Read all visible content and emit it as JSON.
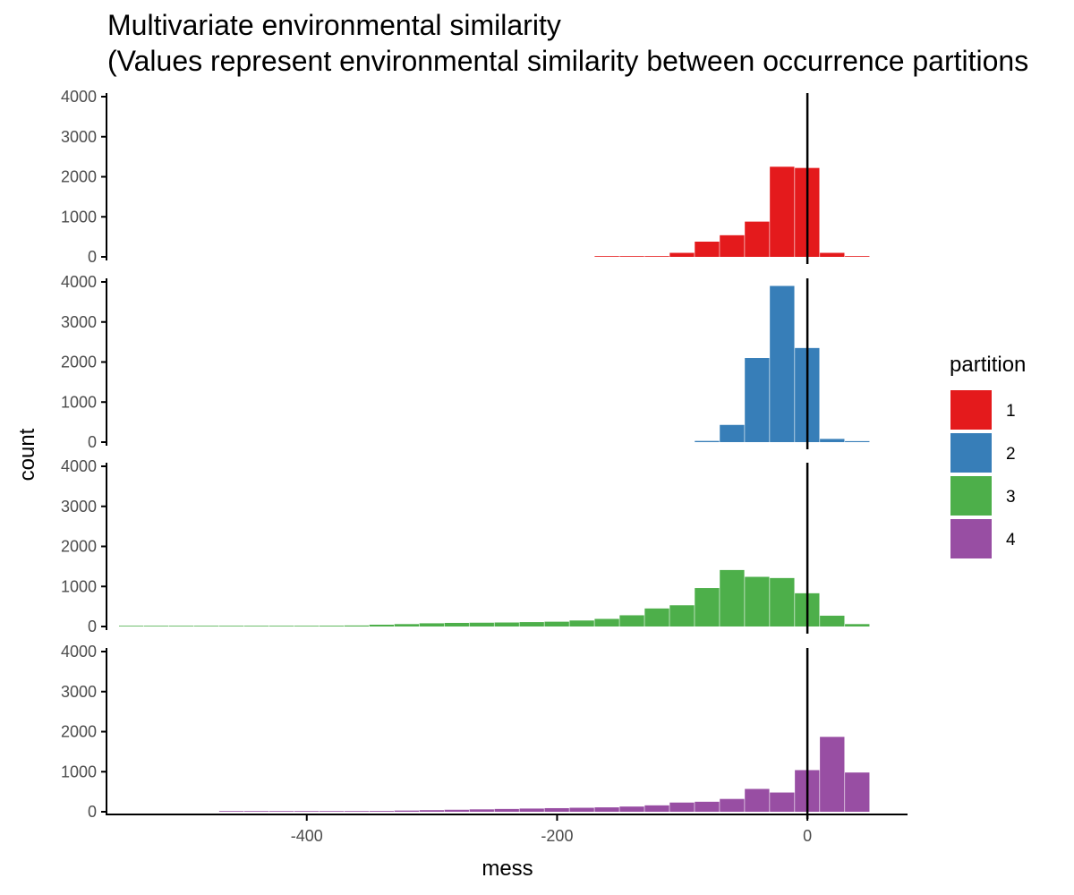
{
  "chart_data": {
    "type": "bar",
    "title": "Multivariate environmental similarity",
    "subtitle": "(Values represent environmental similarity between occurrence partitions",
    "xlabel": "mess",
    "ylabel": "count",
    "xlim": [
      -560,
      80
    ],
    "ylim": [
      0,
      4000
    ],
    "x_ticks": [
      -400,
      -200,
      0
    ],
    "y_ticks": [
      0,
      1000,
      2000,
      3000,
      4000
    ],
    "vline_x": 0,
    "bin_width": 20,
    "grid": false,
    "legend": {
      "title": "partition",
      "position": "right"
    },
    "series": [
      {
        "name": "1",
        "color": "#E41A1C",
        "bin_starts": [
          -170,
          -150,
          -130,
          -110,
          -90,
          -70,
          -50,
          -30,
          -10,
          10,
          30
        ],
        "counts": [
          5,
          10,
          15,
          100,
          380,
          540,
          880,
          2250,
          2220,
          100,
          10
        ]
      },
      {
        "name": "2",
        "color": "#377EB8",
        "bin_starts": [
          -90,
          -70,
          -50,
          -30,
          -10,
          10,
          30
        ],
        "counts": [
          30,
          430,
          2100,
          3900,
          2350,
          80,
          25
        ]
      },
      {
        "name": "3",
        "color": "#4DAF4A",
        "bin_starts": [
          -550,
          -530,
          -510,
          -490,
          -470,
          -450,
          -430,
          -410,
          -390,
          -370,
          -350,
          -330,
          -310,
          -290,
          -270,
          -250,
          -230,
          -210,
          -190,
          -170,
          -150,
          -130,
          -110,
          -90,
          -70,
          -50,
          -30,
          -10,
          10,
          30
        ],
        "counts": [
          3,
          5,
          5,
          8,
          10,
          12,
          15,
          18,
          20,
          25,
          45,
          60,
          80,
          90,
          95,
          100,
          110,
          120,
          150,
          190,
          280,
          450,
          530,
          960,
          1410,
          1240,
          1210,
          830,
          270,
          60
        ]
      },
      {
        "name": "4",
        "color": "#984EA3",
        "bin_starts": [
          -470,
          -450,
          -430,
          -410,
          -390,
          -370,
          -350,
          -330,
          -310,
          -290,
          -270,
          -250,
          -230,
          -210,
          -190,
          -170,
          -150,
          -130,
          -110,
          -90,
          -70,
          -50,
          -30,
          -10,
          10,
          30
        ],
        "counts": [
          5,
          8,
          10,
          12,
          15,
          18,
          20,
          30,
          40,
          50,
          60,
          70,
          80,
          90,
          100,
          110,
          130,
          160,
          230,
          250,
          320,
          570,
          480,
          1040,
          1870,
          980
        ]
      }
    ]
  }
}
